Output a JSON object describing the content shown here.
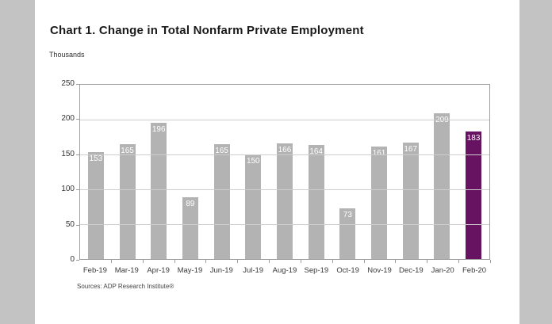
{
  "chart": {
    "title": "Chart 1. Change in Total Nonfarm Private Employment",
    "units_label": "Thousands",
    "source": "Sources: ADP Research Institute®"
  },
  "chart_data": {
    "type": "bar",
    "title": "Chart 1. Change in Total Nonfarm Private Employment",
    "ylabel": "Thousands",
    "xlabel": "",
    "categories": [
      "Feb-19",
      "Mar-19",
      "Apr-19",
      "May-19",
      "Jun-19",
      "Jul-19",
      "Aug-19",
      "Sep-19",
      "Oct-19",
      "Nov-19",
      "Dec-19",
      "Jan-20",
      "Feb-20"
    ],
    "values": [
      153,
      165,
      196,
      89,
      165,
      150,
      166,
      164,
      73,
      161,
      167,
      209,
      183
    ],
    "ylim": [
      0,
      250
    ],
    "yticks": [
      0,
      50,
      100,
      150,
      200,
      250
    ],
    "grid": true,
    "legend": false,
    "highlight_index": 12,
    "colors": {
      "bar_default": "#b3b3b3",
      "bar_highlight": "#681262",
      "value_label": "#ffffff",
      "panel_background": "#ffffff",
      "page_background": "#c3c3c3"
    },
    "value_labels_position": "inside-top",
    "source": "Sources: ADP Research Institute®"
  }
}
